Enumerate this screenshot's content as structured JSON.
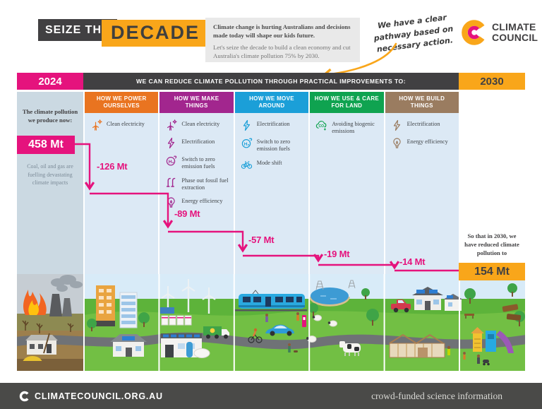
{
  "colors": {
    "pink": "#E5137D",
    "orange": "#F9A61A",
    "dark": "#414042",
    "panelblue": "#DCE9F5",
    "panelgray": "#CBD9E2"
  },
  "header": {
    "logo_seize": "SEIZE THE",
    "logo_decade": "DECADE",
    "intro_bold": "Climate change is hurting Australians and decisions made today will shape our kids future.",
    "intro_text": "Let's seize the decade to build a clean economy and cut Australia's climate pollution 75% by 2030.",
    "handwritten_note": "We have a clear pathway based on necessary action.",
    "brand_line1": "CLIMATE",
    "brand_line2": "COUNCIL"
  },
  "timeline": {
    "start_year": "2024",
    "banner": "WE CAN REDUCE CLIMATE POLLUTION THROUGH PRACTICAL IMPROVEMENTS TO:",
    "end_year": "2030"
  },
  "now": {
    "label": "The climate pollution we produce now:",
    "value": "458 Mt",
    "caption": "Coal, oil and gas are fuelling devastating climate impacts"
  },
  "future": {
    "label": "So that in 2030, we have reduced climate pollution to",
    "value": "154 Mt"
  },
  "columns": [
    {
      "title": "HOW WE POWER OURSELVES",
      "color": "#E97420",
      "reduction": "-126 Mt",
      "items": [
        {
          "icon": "wind-turbine-icon",
          "label": "Clean electricity"
        }
      ]
    },
    {
      "title": "HOW WE MAKE THINGS",
      "color": "#A2268E",
      "reduction": "-89 Mt",
      "items": [
        {
          "icon": "wind-turbine-icon",
          "label": "Clean electricity"
        },
        {
          "icon": "lightning-bolt-icon",
          "label": "Electrification"
        },
        {
          "icon": "hydrogen-icon",
          "label": "Switch to zero emission fuels"
        },
        {
          "icon": "fossil-fuel-rig-icon",
          "label": "Phase out fossil fuel extraction"
        },
        {
          "icon": "lightbulb-icon",
          "label": "Energy efficiency"
        }
      ]
    },
    {
      "title": "HOW WE MOVE AROUND",
      "color": "#1B9FD8",
      "reduction": "-57 Mt",
      "items": [
        {
          "icon": "lightning-bolt-icon",
          "label": "Electrification"
        },
        {
          "icon": "hydrogen-icon",
          "label": "Switch to zero emission fuels"
        },
        {
          "icon": "bicycle-icon",
          "label": "Mode shift"
        }
      ]
    },
    {
      "title": "HOW WE USE & CARE FOR LAND",
      "color": "#0FA350",
      "reduction": "-19 Mt",
      "items": [
        {
          "icon": "co2-cloud-icon",
          "label": "Avoiding biogenic emissions"
        }
      ]
    },
    {
      "title": "HOW WE BUILD THINGS",
      "color": "#9A7C60",
      "reduction": "-14 Mt",
      "items": [
        {
          "icon": "lightning-bolt-icon",
          "label": "Electrification"
        },
        {
          "icon": "lightbulb-icon",
          "label": "Energy efficiency"
        }
      ]
    }
  ],
  "chart_data": {
    "type": "waterfall",
    "title": "WE CAN REDUCE CLIMATE POLLUTION THROUGH PRACTICAL IMPROVEMENTS TO:",
    "unit": "Mt",
    "start": {
      "year": "2024",
      "value_mt": 458
    },
    "steps": [
      {
        "category": "How we power ourselves",
        "change_mt": -126
      },
      {
        "category": "How we make things",
        "change_mt": -89
      },
      {
        "category": "How we move around",
        "change_mt": -57
      },
      {
        "category": "How we use & care for land",
        "change_mt": -19
      },
      {
        "category": "How we build things",
        "change_mt": -14
      }
    ],
    "end": {
      "year": "2030",
      "value_mt": 154
    }
  },
  "footer": {
    "site": "CLIMATECOUNCIL.ORG.AU",
    "tagline": "crowd-funded science information"
  }
}
